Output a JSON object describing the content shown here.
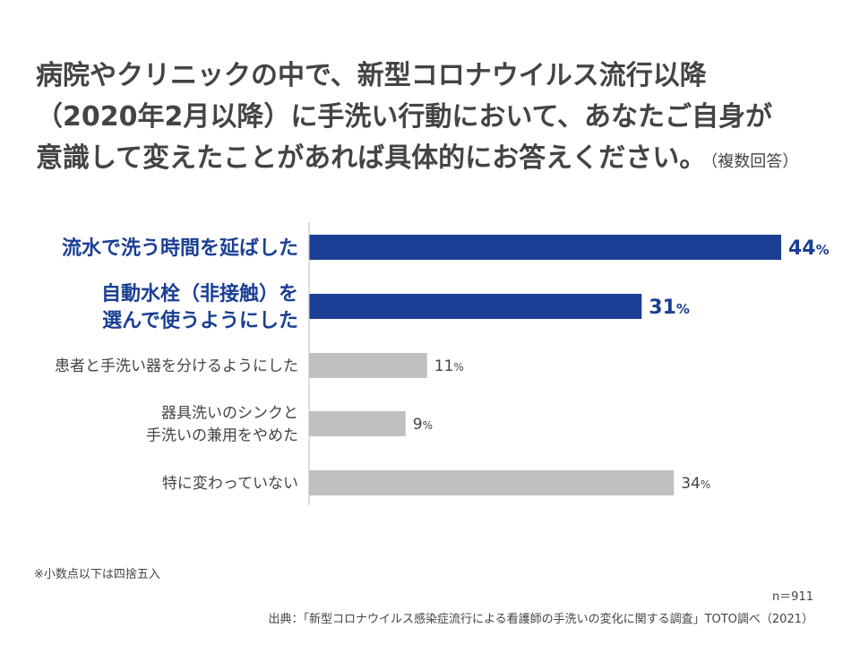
{
  "title": {
    "lines": [
      "病院やクリニックの中で、新型コロナウイルス流行以降",
      "（2020年2月以降）に手洗い行動において、あなたご自身が",
      "意識して変えたことがあれば具体的にお答えください。"
    ],
    "note": "（複数回答）"
  },
  "chart_data": {
    "type": "bar",
    "orientation": "horizontal",
    "title": "",
    "xlabel": "",
    "ylabel": "",
    "xlim": [
      0,
      44
    ],
    "value_suffix": "%",
    "categories": [
      "流水で洗う時間を延ばした",
      "自動水栓（非接触）を\n選んで使うようにした",
      "患者と手洗い器を分けるようにした",
      "器具洗いのシンクと\n手洗いの兼用をやめた",
      "特に変わっていない"
    ],
    "values": [
      44,
      31,
      11,
      9,
      34
    ],
    "highlight": [
      true,
      true,
      false,
      false,
      false
    ],
    "colors": {
      "highlight": "#1b3f94",
      "normal": "#c0c0c0",
      "highlight_text": "#1b3f94",
      "normal_text": "#444444",
      "axis": "#bbbbbb"
    }
  },
  "footnote": "※小数点以下は四捨五入",
  "sample_size": "n＝911",
  "source": "出典：「新型コロナウイルス感染症流行による看護師の手洗いの変化に関する調査」TOTO調べ（2021）"
}
